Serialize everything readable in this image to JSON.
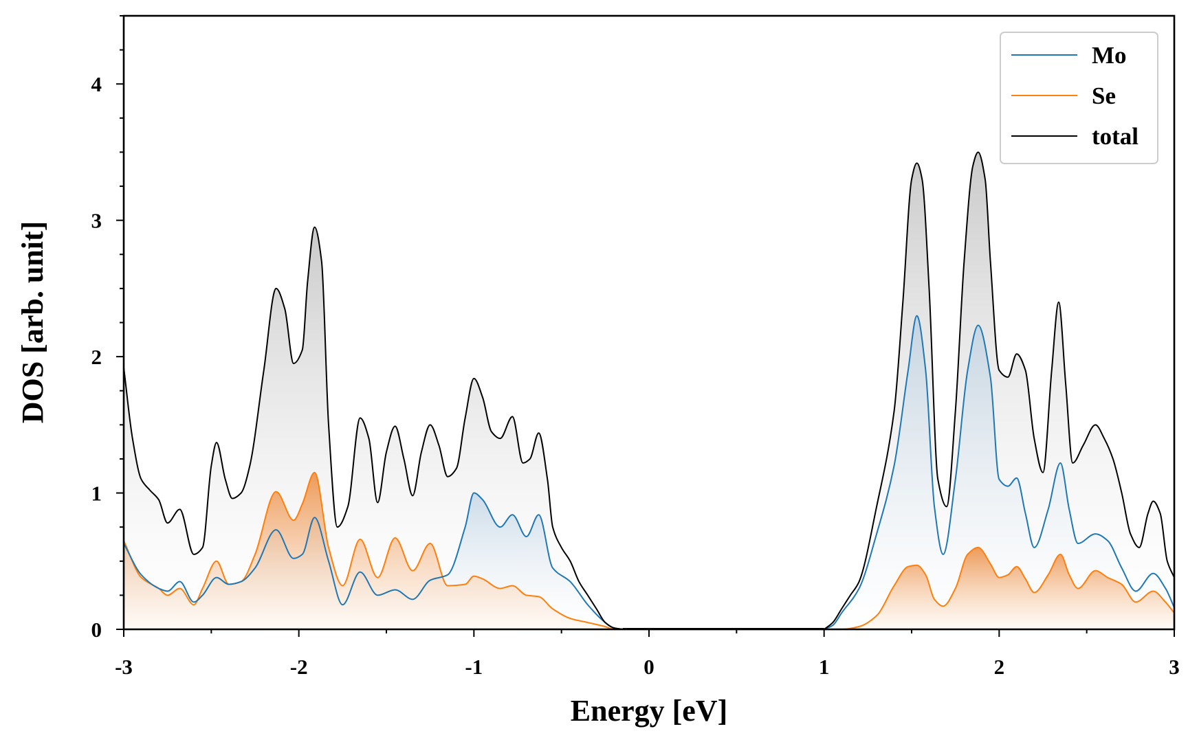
{
  "chart_data": {
    "type": "area",
    "title": "",
    "xlabel": "Energy [eV]",
    "ylabel": "DOS [arb. unit]",
    "xlim": [
      -3,
      3
    ],
    "ylim": [
      0,
      4.5
    ],
    "xticks": [
      -3,
      -2,
      -1,
      0,
      1,
      2,
      3
    ],
    "xtick_labels": [
      "-3",
      "-2",
      "-1",
      "0",
      "1",
      "2",
      "3"
    ],
    "yticks": [
      0,
      1,
      2,
      3,
      4
    ],
    "ytick_labels": [
      "0",
      "1",
      "2",
      "3",
      "4"
    ],
    "grid": false,
    "legend_position": "top-right",
    "series": [
      {
        "name": "Mo",
        "color": "#1f77b4",
        "fill": "blue-gradient",
        "x": [
          -3.0,
          -2.9,
          -2.8,
          -2.75,
          -2.68,
          -2.6,
          -2.55,
          -2.47,
          -2.4,
          -2.33,
          -2.25,
          -2.13,
          -2.03,
          -1.98,
          -1.91,
          -1.83,
          -1.75,
          -1.65,
          -1.55,
          -1.45,
          -1.35,
          -1.25,
          -1.15,
          -1.05,
          -1.0,
          -0.95,
          -0.85,
          -0.78,
          -0.7,
          -0.63,
          -0.55,
          -0.45,
          -0.35,
          -0.25,
          -0.2,
          -0.15,
          1.0,
          1.05,
          1.1,
          1.2,
          1.3,
          1.4,
          1.48,
          1.53,
          1.58,
          1.63,
          1.68,
          1.75,
          1.82,
          1.88,
          1.95,
          2.0,
          2.05,
          2.1,
          2.15,
          2.2,
          2.28,
          2.35,
          2.4,
          2.45,
          2.55,
          2.62,
          2.7,
          2.78,
          2.88,
          2.95,
          3.0
        ],
        "y": [
          0.63,
          0.4,
          0.3,
          0.28,
          0.35,
          0.2,
          0.25,
          0.38,
          0.33,
          0.35,
          0.45,
          0.73,
          0.52,
          0.55,
          0.82,
          0.5,
          0.18,
          0.42,
          0.25,
          0.29,
          0.22,
          0.36,
          0.4,
          0.75,
          1.0,
          0.95,
          0.75,
          0.84,
          0.68,
          0.84,
          0.45,
          0.35,
          0.18,
          0.05,
          0.01,
          0.0,
          0.0,
          0.03,
          0.12,
          0.3,
          0.7,
          1.2,
          1.9,
          2.3,
          1.9,
          0.9,
          0.55,
          1.1,
          1.9,
          2.23,
          1.85,
          1.1,
          1.05,
          1.11,
          0.85,
          0.6,
          0.88,
          1.22,
          0.88,
          0.63,
          0.7,
          0.65,
          0.45,
          0.28,
          0.41,
          0.3,
          0.16
        ]
      },
      {
        "name": "Se",
        "color": "#ff7f0e",
        "fill": "orange-gradient",
        "x": [
          -3.0,
          -2.9,
          -2.8,
          -2.75,
          -2.68,
          -2.6,
          -2.55,
          -2.47,
          -2.4,
          -2.33,
          -2.25,
          -2.13,
          -2.03,
          -1.98,
          -1.91,
          -1.83,
          -1.75,
          -1.65,
          -1.55,
          -1.45,
          -1.35,
          -1.25,
          -1.15,
          -1.05,
          -1.0,
          -0.95,
          -0.85,
          -0.78,
          -0.7,
          -0.63,
          -0.55,
          -0.45,
          -0.35,
          -0.25,
          -0.2,
          -0.15,
          1.0,
          1.05,
          1.1,
          1.2,
          1.3,
          1.4,
          1.48,
          1.53,
          1.58,
          1.63,
          1.68,
          1.75,
          1.82,
          1.88,
          1.95,
          2.0,
          2.05,
          2.1,
          2.15,
          2.2,
          2.28,
          2.35,
          2.4,
          2.45,
          2.55,
          2.62,
          2.7,
          2.78,
          2.88,
          2.95,
          3.0
        ],
        "y": [
          0.65,
          0.38,
          0.3,
          0.25,
          0.3,
          0.18,
          0.3,
          0.5,
          0.33,
          0.35,
          0.55,
          1.01,
          0.8,
          0.92,
          1.15,
          0.6,
          0.32,
          0.66,
          0.38,
          0.67,
          0.43,
          0.63,
          0.32,
          0.33,
          0.39,
          0.37,
          0.3,
          0.32,
          0.25,
          0.24,
          0.15,
          0.08,
          0.05,
          0.02,
          0.0,
          0.0,
          0.0,
          0.0,
          0.0,
          0.02,
          0.1,
          0.32,
          0.46,
          0.47,
          0.4,
          0.22,
          0.17,
          0.3,
          0.55,
          0.6,
          0.48,
          0.38,
          0.4,
          0.46,
          0.37,
          0.27,
          0.4,
          0.55,
          0.4,
          0.3,
          0.43,
          0.38,
          0.33,
          0.2,
          0.28,
          0.2,
          0.12
        ]
      },
      {
        "name": "total",
        "color": "#000000",
        "fill": "gray-gradient",
        "x": [
          -3.0,
          -2.95,
          -2.9,
          -2.85,
          -2.8,
          -2.75,
          -2.68,
          -2.6,
          -2.55,
          -2.5,
          -2.47,
          -2.42,
          -2.38,
          -2.33,
          -2.28,
          -2.2,
          -2.13,
          -2.08,
          -2.03,
          -1.98,
          -1.95,
          -1.91,
          -1.87,
          -1.83,
          -1.78,
          -1.72,
          -1.65,
          -1.6,
          -1.55,
          -1.5,
          -1.45,
          -1.4,
          -1.35,
          -1.3,
          -1.25,
          -1.2,
          -1.15,
          -1.1,
          -1.05,
          -1.0,
          -0.95,
          -0.9,
          -0.85,
          -0.78,
          -0.72,
          -0.68,
          -0.63,
          -0.58,
          -0.55,
          -0.5,
          -0.45,
          -0.4,
          -0.35,
          -0.3,
          -0.25,
          -0.2,
          -0.15,
          1.0,
          1.05,
          1.1,
          1.15,
          1.2,
          1.3,
          1.4,
          1.45,
          1.5,
          1.53,
          1.56,
          1.6,
          1.65,
          1.7,
          1.75,
          1.8,
          1.85,
          1.88,
          1.92,
          1.95,
          2.0,
          2.05,
          2.1,
          2.15,
          2.2,
          2.25,
          2.3,
          2.34,
          2.38,
          2.42,
          2.48,
          2.55,
          2.6,
          2.65,
          2.7,
          2.75,
          2.8,
          2.85,
          2.88,
          2.92,
          2.96,
          3.0
        ],
        "y": [
          1.92,
          1.4,
          1.1,
          1.02,
          0.95,
          0.78,
          0.88,
          0.55,
          0.6,
          1.2,
          1.37,
          1.1,
          0.96,
          1.0,
          1.2,
          1.9,
          2.5,
          2.35,
          1.95,
          2.05,
          2.55,
          2.95,
          2.7,
          1.5,
          0.75,
          0.9,
          1.55,
          1.4,
          0.93,
          1.3,
          1.49,
          1.25,
          0.98,
          1.3,
          1.5,
          1.35,
          1.12,
          1.18,
          1.55,
          1.84,
          1.7,
          1.45,
          1.4,
          1.56,
          1.22,
          1.25,
          1.44,
          1.1,
          0.75,
          0.6,
          0.5,
          0.35,
          0.25,
          0.15,
          0.05,
          0.01,
          0.0,
          0.0,
          0.05,
          0.15,
          0.25,
          0.35,
          0.9,
          1.6,
          2.4,
          3.3,
          3.42,
          3.3,
          2.5,
          1.1,
          0.9,
          1.6,
          2.7,
          3.4,
          3.5,
          3.3,
          2.7,
          1.9,
          1.85,
          2.02,
          1.9,
          1.4,
          1.15,
          1.9,
          2.4,
          1.8,
          1.22,
          1.35,
          1.5,
          1.4,
          1.25,
          1.0,
          0.7,
          0.6,
          0.85,
          0.94,
          0.85,
          0.5,
          0.38
        ]
      }
    ]
  }
}
